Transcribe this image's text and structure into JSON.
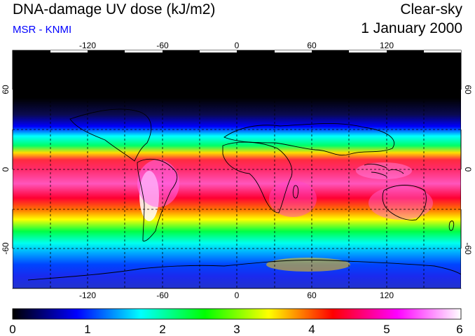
{
  "header": {
    "title": "DNA-damage UV dose (kJ/m2)",
    "source": "MSR - KNMI",
    "product": "Clear-sky",
    "date": "1 January 2000"
  },
  "map": {
    "projection": "equirectangular",
    "lon_range": [
      -180,
      180
    ],
    "lat_range": [
      -90,
      90
    ],
    "lon_ticks": [
      "-120",
      "-60",
      "0",
      "60",
      "120"
    ],
    "lon_tick_values": [
      -120,
      -60,
      0,
      60,
      120
    ],
    "lat_ticks": [
      "60",
      "0",
      "-60"
    ],
    "lat_tick_values": [
      60,
      0,
      -60
    ],
    "gridlines": "dashed",
    "features": [
      "coastlines",
      "gridlines"
    ]
  },
  "colorbar": {
    "min": 0,
    "max": 6,
    "labels": [
      "0",
      "1",
      "2",
      "3",
      "4",
      "5",
      "6"
    ],
    "stops": [
      "#000000",
      "#0000ff",
      "#00ffff",
      "#00ff00",
      "#ffff00",
      "#ff0000",
      "#ff00ff",
      "#ffffff"
    ],
    "unit": "kJ/m2"
  },
  "colors": {
    "source_text": "#0000ff",
    "grid": "#000000"
  }
}
